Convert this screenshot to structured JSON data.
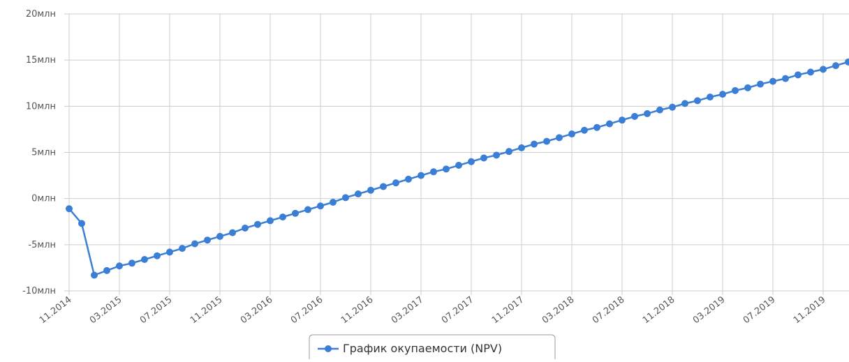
{
  "chart_data": {
    "type": "line",
    "categories": [
      "11.2014",
      null,
      null,
      null,
      "03.2015",
      null,
      null,
      null,
      "07.2015",
      null,
      null,
      null,
      "11.2015",
      null,
      null,
      null,
      "03.2016",
      null,
      null,
      null,
      "07.2016",
      null,
      null,
      null,
      "11.2016",
      null,
      null,
      null,
      "03.2017",
      null,
      null,
      null,
      "07.2017",
      null,
      null,
      null,
      "11.2017",
      null,
      null,
      null,
      "03.2018",
      null,
      null,
      null,
      "07.2018",
      null,
      null,
      null,
      "11.2018",
      null,
      null,
      null,
      "03.2019",
      null,
      null,
      null,
      "07.2019",
      null,
      null,
      null,
      "11.2019",
      null,
      null
    ],
    "series": [
      {
        "name": "График окупаемости (NPV)",
        "color": "#3a7fd5",
        "values": [
          -1.1,
          -2.7,
          -8.3,
          -7.8,
          -7.3,
          -7.0,
          -6.6,
          -6.2,
          -5.8,
          -5.4,
          -4.9,
          -4.5,
          -4.1,
          -3.7,
          -3.2,
          -2.8,
          -2.4,
          -2.0,
          -1.6,
          -1.2,
          -0.8,
          -0.4,
          0.1,
          0.5,
          0.9,
          1.3,
          1.7,
          2.1,
          2.5,
          2.9,
          3.2,
          3.6,
          4.0,
          4.4,
          4.7,
          5.1,
          5.5,
          5.9,
          6.2,
          6.6,
          7.0,
          7.4,
          7.7,
          8.1,
          8.5,
          8.9,
          9.2,
          9.6,
          9.9,
          10.3,
          10.6,
          11.0,
          11.3,
          11.7,
          12.0,
          12.4,
          12.7,
          13.0,
          13.4,
          13.7,
          14.0,
          14.4,
          14.8
        ]
      }
    ],
    "ylim": [
      -10,
      20
    ],
    "yticks": [
      {
        "value": -10,
        "label": "-10млн"
      },
      {
        "value": -5,
        "label": "-5млн"
      },
      {
        "value": 0,
        "label": "0млн"
      },
      {
        "value": 5,
        "label": "5млн"
      },
      {
        "value": 10,
        "label": "10млн"
      },
      {
        "value": 15,
        "label": "15млн"
      },
      {
        "value": 20,
        "label": "20млн"
      }
    ],
    "grid": true
  }
}
